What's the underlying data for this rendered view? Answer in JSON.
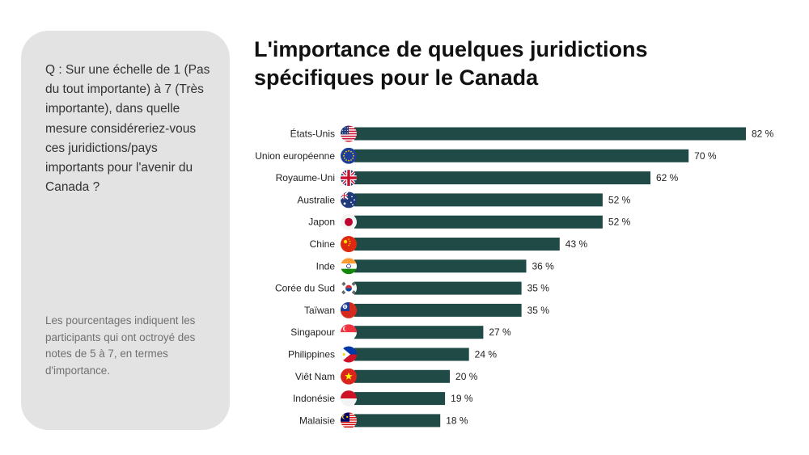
{
  "question": "Q : Sur une échelle de 1 (Pas du tout importante) à 7 (Très importante), dans quelle mesure considéreriez-vous ces juridictions/pays importants pour l'avenir du Canada ?",
  "note": "Les pourcentages indiquent les participants qui ont octroyé des notes de 5 à 7, en termes d'importance.",
  "colors": {
    "bar": "#1f4a45",
    "panel": "#e3e3e3"
  },
  "chart_data": {
    "type": "bar",
    "orientation": "horizontal",
    "title": "L'importance de quelques juridictions spécifiques pour le Canada",
    "xlim": [
      0,
      82
    ],
    "grid": false,
    "legend": "none",
    "value_suffix": " %",
    "categories": [
      "États-Unis",
      "Union européenne",
      "Royaume-Uni",
      "Australie",
      "Japon",
      "Chine",
      "Inde",
      "Corée du Sud",
      "Taïwan",
      "Singapour",
      "Philippines",
      "Viêt Nam",
      "Indonésie",
      "Malaisie"
    ],
    "flags": [
      "us-flag-icon",
      "eu-flag-icon",
      "uk-flag-icon",
      "australia-flag-icon",
      "japan-flag-icon",
      "china-flag-icon",
      "india-flag-icon",
      "south-korea-flag-icon",
      "taiwan-flag-icon",
      "singapore-flag-icon",
      "philippines-flag-icon",
      "vietnam-flag-icon",
      "indonesia-flag-icon",
      "malaysia-flag-icon"
    ],
    "values": [
      82,
      70,
      62,
      52,
      52,
      43,
      36,
      35,
      35,
      27,
      24,
      20,
      19,
      18
    ]
  }
}
